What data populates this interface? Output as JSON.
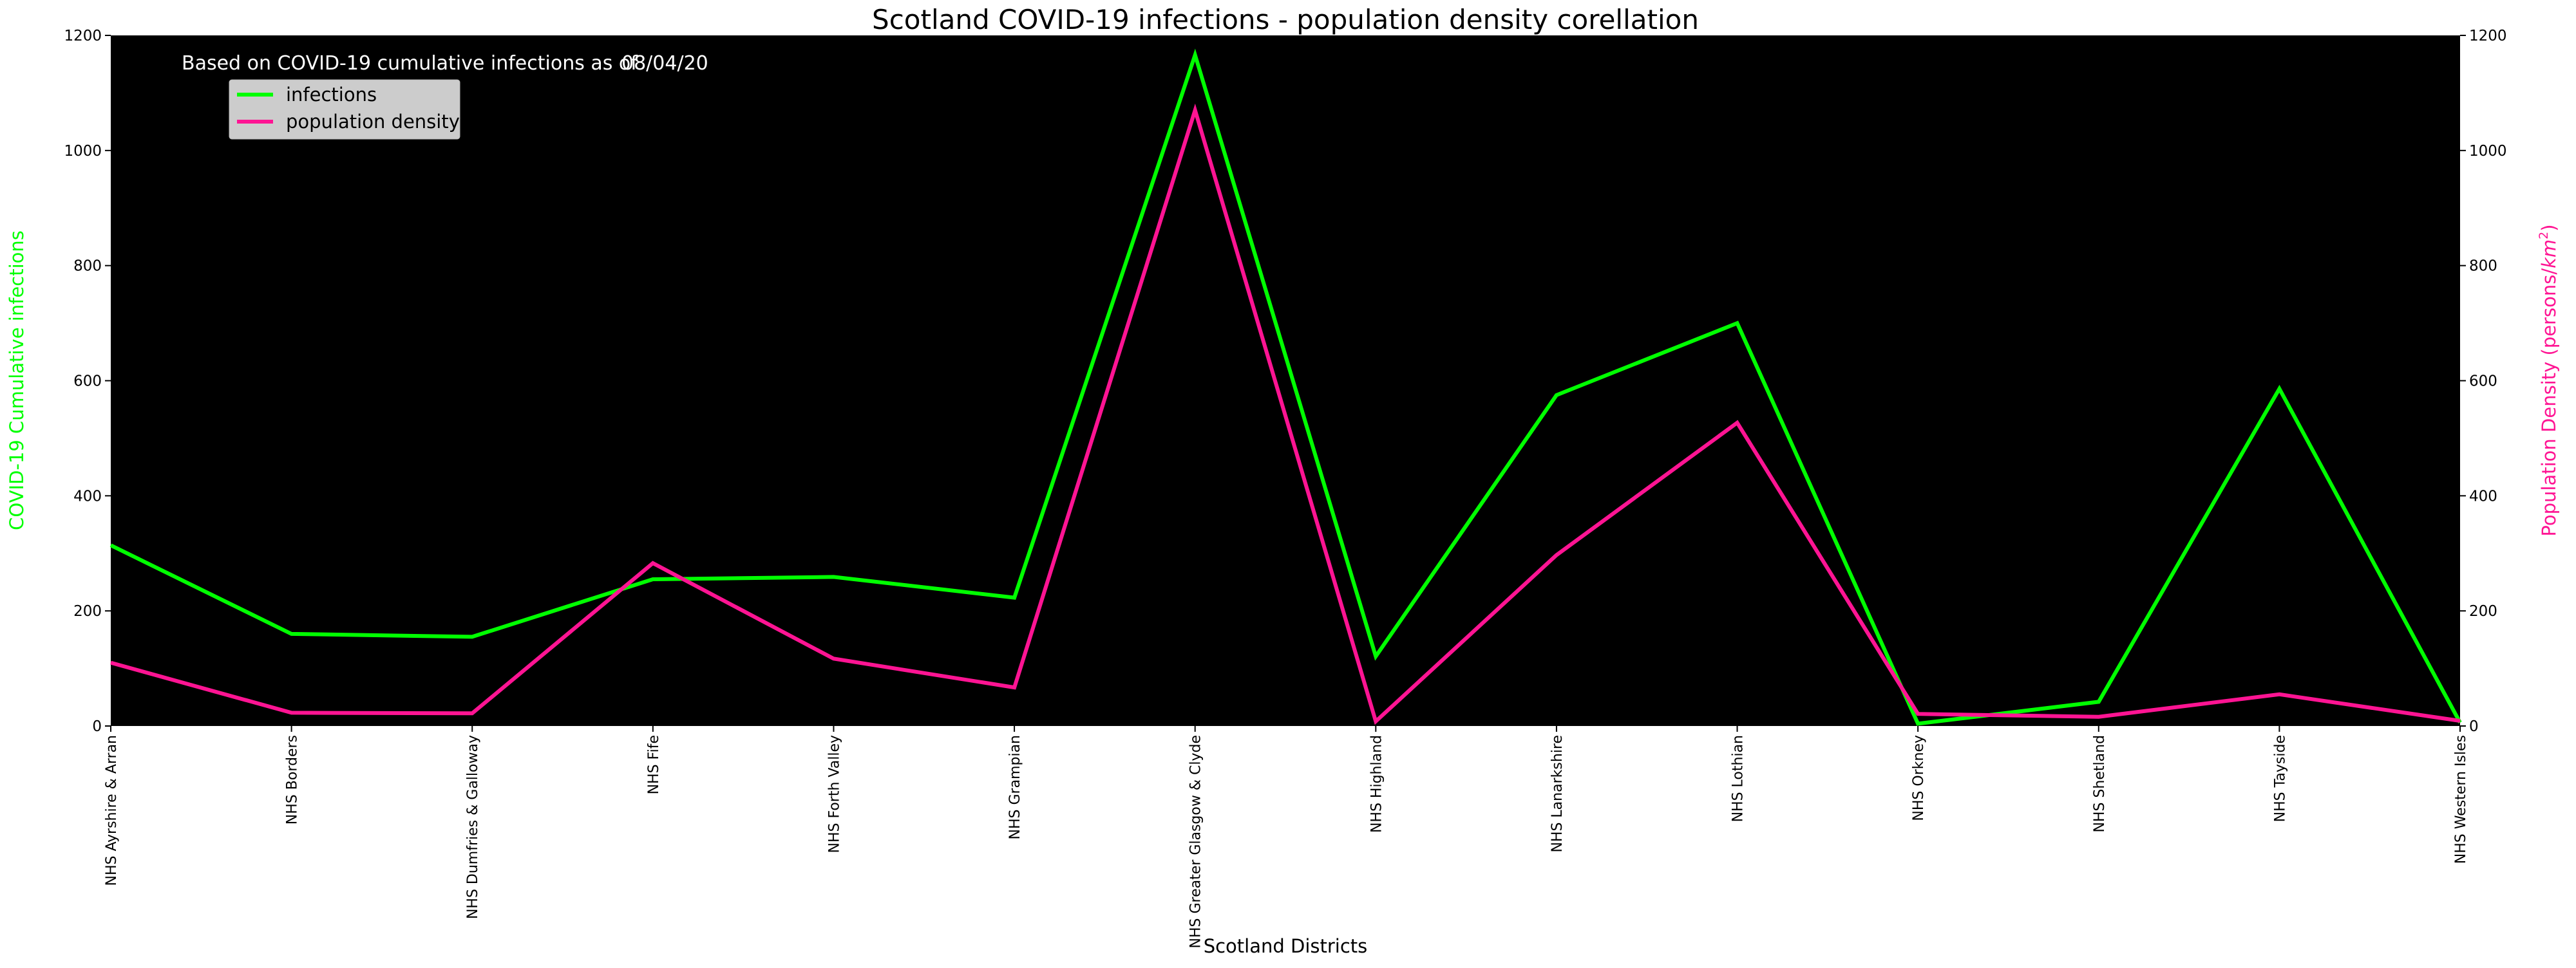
{
  "chart_data": {
    "type": "line",
    "title": "Scotland COVID-19 infections - population density corellation",
    "subtitle_prefix": "Based on COVID-19 cumulative infections as of",
    "subtitle_date": "08/04/20",
    "xlabel": "Scotland Districts",
    "ylabel_left": "COVID-19 Cumulative infections",
    "ylabel_right_text": "Population Density (persons/",
    "ylabel_right_unit": "km",
    "ylabel_right_exp": "2",
    "ylabel_right_close": ")",
    "ylim": [
      0,
      1200
    ],
    "yticks": [
      "0",
      "200",
      "400",
      "600",
      "800",
      "1000",
      "1200"
    ],
    "categories": [
      "NHS Ayrshire & Arran",
      "NHS Borders",
      "NHS Dumfries & Galloway",
      "NHS Fife",
      "NHS Forth Valley",
      "NHS Grampian",
      "NHS Greater Glasgow & Clyde",
      "NHS Highland",
      "NHS Lanarkshire",
      "NHS Lothian",
      "NHS Orkney",
      "NHS Shetland",
      "NHS Tayside",
      "NHS Western Isles"
    ],
    "series": [
      {
        "name": "infections",
        "color": "#00ff00",
        "axis": "left",
        "values": [
          314,
          160,
          155,
          255,
          259,
          223,
          1166,
          121,
          575,
          700,
          4,
          42,
          586,
          6
        ]
      },
      {
        "name": "population density",
        "color": "#ff1493",
        "axis": "right",
        "values": [
          110,
          23,
          22,
          283,
          117,
          67,
          1070,
          8,
          297,
          527,
          21,
          16,
          55,
          9
        ]
      }
    ],
    "legend_position": "top-left",
    "background": "#000000"
  }
}
